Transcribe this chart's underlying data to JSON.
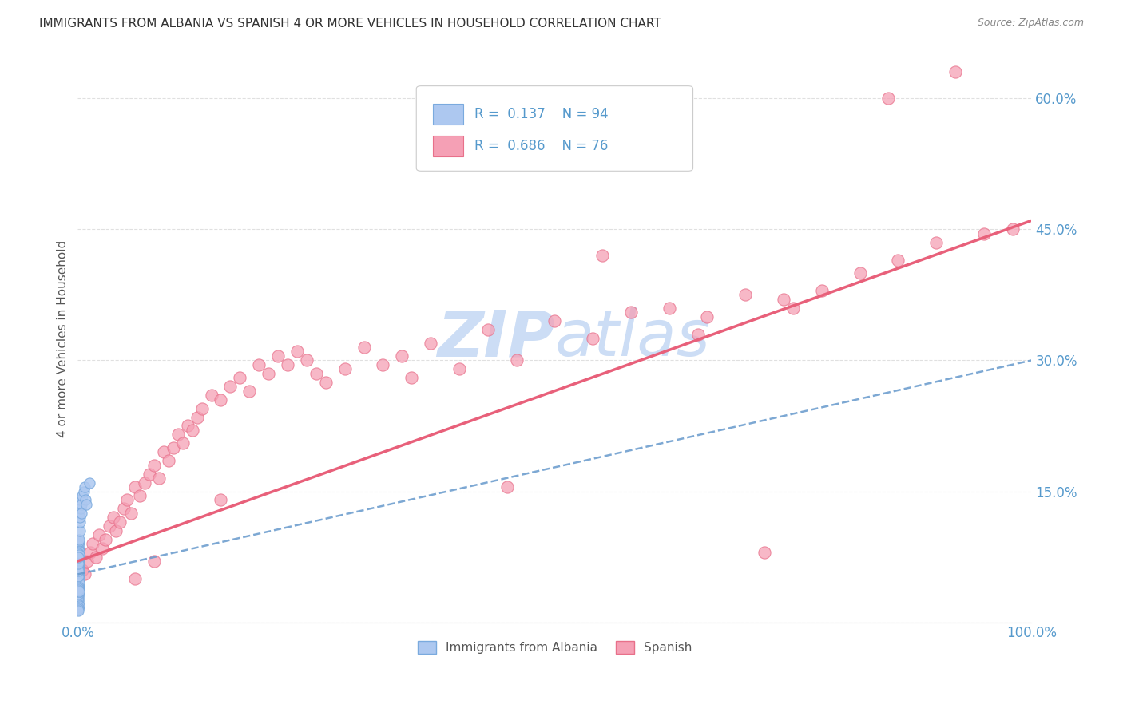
{
  "title": "IMMIGRANTS FROM ALBANIA VS SPANISH 4 OR MORE VEHICLES IN HOUSEHOLD CORRELATION CHART",
  "source": "Source: ZipAtlas.com",
  "ylabel": "4 or more Vehicles in Household",
  "xlim": [
    0.0,
    1.0
  ],
  "ylim": [
    0.0,
    0.65
  ],
  "albania_R": 0.137,
  "albania_N": 94,
  "spanish_R": 0.686,
  "spanish_N": 76,
  "albania_color": "#adc8f0",
  "albania_edge_color": "#7aaade",
  "spanish_color": "#f5a0b5",
  "spanish_edge_color": "#e8708a",
  "albania_line_color": "#6699cc",
  "spanish_line_color": "#e8607a",
  "watermark_color": "#ccddf5",
  "background_color": "#ffffff",
  "grid_color": "#e0e0e0",
  "tick_color": "#5599cc",
  "albania_scatter_x": [
    0.0005,
    0.001,
    0.0008,
    0.0012,
    0.0006,
    0.0009,
    0.0007,
    0.0011,
    0.0005,
    0.0008,
    0.0006,
    0.001,
    0.0007,
    0.0009,
    0.0005,
    0.0008,
    0.001,
    0.0006,
    0.0009,
    0.0007,
    0.0005,
    0.001,
    0.0008,
    0.0006,
    0.0009,
    0.0007,
    0.0011,
    0.0005,
    0.0008,
    0.001,
    0.0006,
    0.0009,
    0.0007,
    0.0005,
    0.001,
    0.0008,
    0.0006,
    0.0009,
    0.0007,
    0.0011,
    0.0005,
    0.0008,
    0.001,
    0.0006,
    0.0009,
    0.0007,
    0.0005,
    0.001,
    0.0008,
    0.0006,
    0.0009,
    0.0007,
    0.0011,
    0.0005,
    0.0008,
    0.001,
    0.0006,
    0.0009,
    0.0007,
    0.0005,
    0.001,
    0.0008,
    0.0006,
    0.0009,
    0.0007,
    0.0011,
    0.0005,
    0.0008,
    0.001,
    0.0006,
    0.0009,
    0.0007,
    0.0005,
    0.001,
    0.0008,
    0.0006,
    0.0009,
    0.0007,
    0.0011,
    0.0005,
    0.0015,
    0.002,
    0.0018,
    0.0022,
    0.003,
    0.0025,
    0.004,
    0.0035,
    0.005,
    0.006,
    0.008,
    0.007,
    0.009,
    0.012
  ],
  "albania_scatter_y": [
    0.045,
    0.055,
    0.04,
    0.06,
    0.05,
    0.065,
    0.048,
    0.058,
    0.042,
    0.052,
    0.07,
    0.038,
    0.062,
    0.044,
    0.056,
    0.068,
    0.046,
    0.072,
    0.036,
    0.064,
    0.054,
    0.076,
    0.034,
    0.066,
    0.074,
    0.032,
    0.078,
    0.043,
    0.053,
    0.082,
    0.041,
    0.071,
    0.033,
    0.081,
    0.061,
    0.051,
    0.091,
    0.031,
    0.069,
    0.079,
    0.039,
    0.059,
    0.049,
    0.089,
    0.029,
    0.077,
    0.037,
    0.087,
    0.057,
    0.047,
    0.085,
    0.027,
    0.075,
    0.035,
    0.083,
    0.045,
    0.073,
    0.025,
    0.063,
    0.053,
    0.093,
    0.023,
    0.061,
    0.071,
    0.021,
    0.081,
    0.041,
    0.069,
    0.019,
    0.079,
    0.039,
    0.059,
    0.017,
    0.077,
    0.037,
    0.067,
    0.015,
    0.075,
    0.035,
    0.013,
    0.095,
    0.105,
    0.115,
    0.12,
    0.13,
    0.14,
    0.135,
    0.125,
    0.145,
    0.15,
    0.14,
    0.155,
    0.135,
    0.16
  ],
  "spanish_scatter_x": [
    0.005,
    0.007,
    0.01,
    0.013,
    0.016,
    0.019,
    0.022,
    0.026,
    0.029,
    0.033,
    0.037,
    0.04,
    0.044,
    0.048,
    0.052,
    0.056,
    0.06,
    0.065,
    0.07,
    0.075,
    0.08,
    0.085,
    0.09,
    0.095,
    0.1,
    0.105,
    0.11,
    0.115,
    0.12,
    0.125,
    0.13,
    0.14,
    0.15,
    0.16,
    0.17,
    0.18,
    0.19,
    0.2,
    0.21,
    0.22,
    0.23,
    0.24,
    0.26,
    0.28,
    0.3,
    0.32,
    0.34,
    0.37,
    0.4,
    0.43,
    0.46,
    0.5,
    0.54,
    0.58,
    0.62,
    0.66,
    0.7,
    0.74,
    0.78,
    0.82,
    0.86,
    0.9,
    0.95,
    0.55,
    0.45,
    0.35,
    0.25,
    0.15,
    0.08,
    0.06,
    0.75,
    0.65,
    0.85,
    0.92,
    0.98,
    0.72
  ],
  "spanish_scatter_y": [
    0.06,
    0.055,
    0.07,
    0.08,
    0.09,
    0.075,
    0.1,
    0.085,
    0.095,
    0.11,
    0.12,
    0.105,
    0.115,
    0.13,
    0.14,
    0.125,
    0.155,
    0.145,
    0.16,
    0.17,
    0.18,
    0.165,
    0.195,
    0.185,
    0.2,
    0.215,
    0.205,
    0.225,
    0.22,
    0.235,
    0.245,
    0.26,
    0.255,
    0.27,
    0.28,
    0.265,
    0.295,
    0.285,
    0.305,
    0.295,
    0.31,
    0.3,
    0.275,
    0.29,
    0.315,
    0.295,
    0.305,
    0.32,
    0.29,
    0.335,
    0.3,
    0.345,
    0.325,
    0.355,
    0.36,
    0.35,
    0.375,
    0.37,
    0.38,
    0.4,
    0.415,
    0.435,
    0.445,
    0.42,
    0.155,
    0.28,
    0.285,
    0.14,
    0.07,
    0.05,
    0.36,
    0.33,
    0.6,
    0.63,
    0.45,
    0.08
  ]
}
